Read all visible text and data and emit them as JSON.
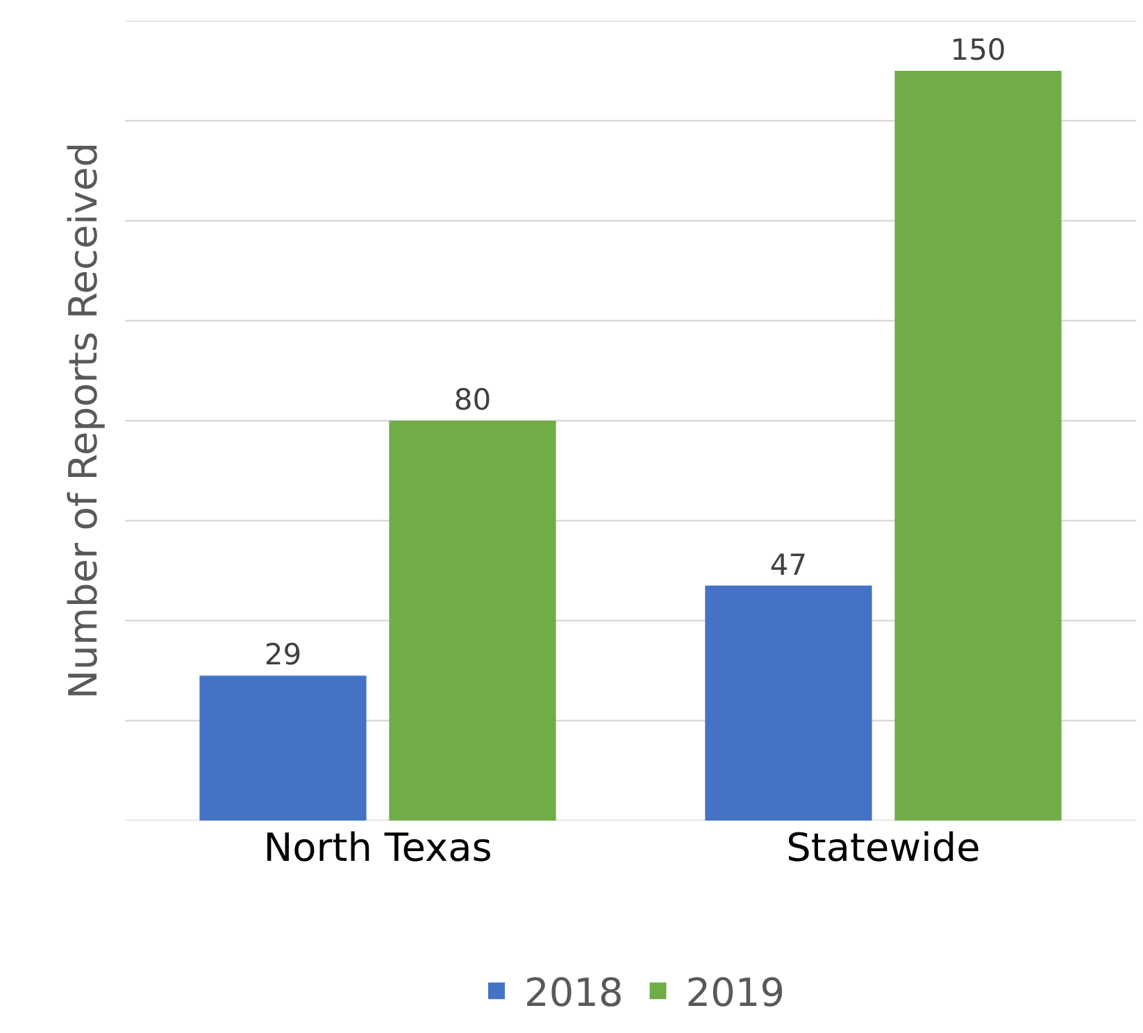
{
  "chart_data": {
    "type": "bar",
    "ylabel": "Number of Reports Received",
    "categories": [
      "North Texas",
      "Statewide"
    ],
    "series": [
      {
        "name": "2018",
        "color": "#4472c4",
        "values": [
          29,
          47
        ]
      },
      {
        "name": "2019",
        "color": "#70ad47",
        "values": [
          80,
          150
        ]
      }
    ],
    "ylim": [
      0,
      160
    ],
    "yticks": [
      {
        "value": 0,
        "label": null
      },
      {
        "value": 20,
        "label": null
      },
      {
        "value": 40,
        "label": null
      },
      {
        "value": 60,
        "label": null
      },
      {
        "value": 80,
        "label": null
      },
      {
        "value": 100,
        "label": null
      },
      {
        "value": 120,
        "label": null
      },
      {
        "value": 140,
        "label": null
      },
      {
        "value": 160,
        "label": null
      }
    ],
    "grid": "y",
    "legend": "bottom",
    "tick_labels": "x",
    "data_labels": true
  }
}
